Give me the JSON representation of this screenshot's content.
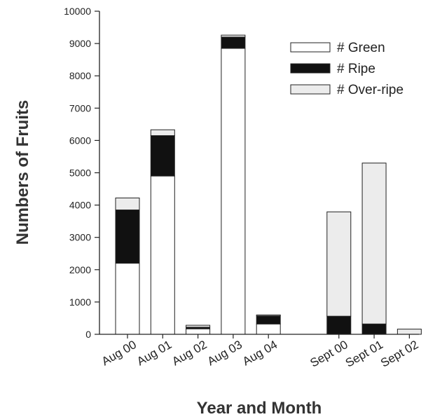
{
  "chart_data": {
    "type": "bar",
    "stacked": true,
    "title": "",
    "xlabel": "Year and Month",
    "ylabel": "Numbers of Fruits",
    "ylim": [
      0,
      10000
    ],
    "yticks": [
      0,
      1000,
      2000,
      3000,
      4000,
      5000,
      6000,
      7000,
      8000,
      9000,
      10000
    ],
    "categories": [
      "Aug 00",
      "Aug 01",
      "Aug 02",
      "Aug 03",
      "Aug 04",
      "Sept 00",
      "Sept 01",
      "Sept 02"
    ],
    "category_slots": [
      0,
      1,
      2,
      3,
      4,
      6,
      7,
      8
    ],
    "series": [
      {
        "name": "# Green",
        "color": "#ffffff",
        "values": [
          2200,
          4900,
          170,
          8850,
          320,
          0,
          0,
          0
        ]
      },
      {
        "name": "# Ripe",
        "color": "#111111",
        "values": [
          1650,
          1250,
          50,
          350,
          250,
          560,
          320,
          0
        ]
      },
      {
        "name": "# Over-ripe",
        "color": "#ececec",
        "values": [
          370,
          180,
          60,
          60,
          30,
          3230,
          4980,
          160
        ]
      }
    ],
    "legend_position": "top-right",
    "grid": false
  }
}
